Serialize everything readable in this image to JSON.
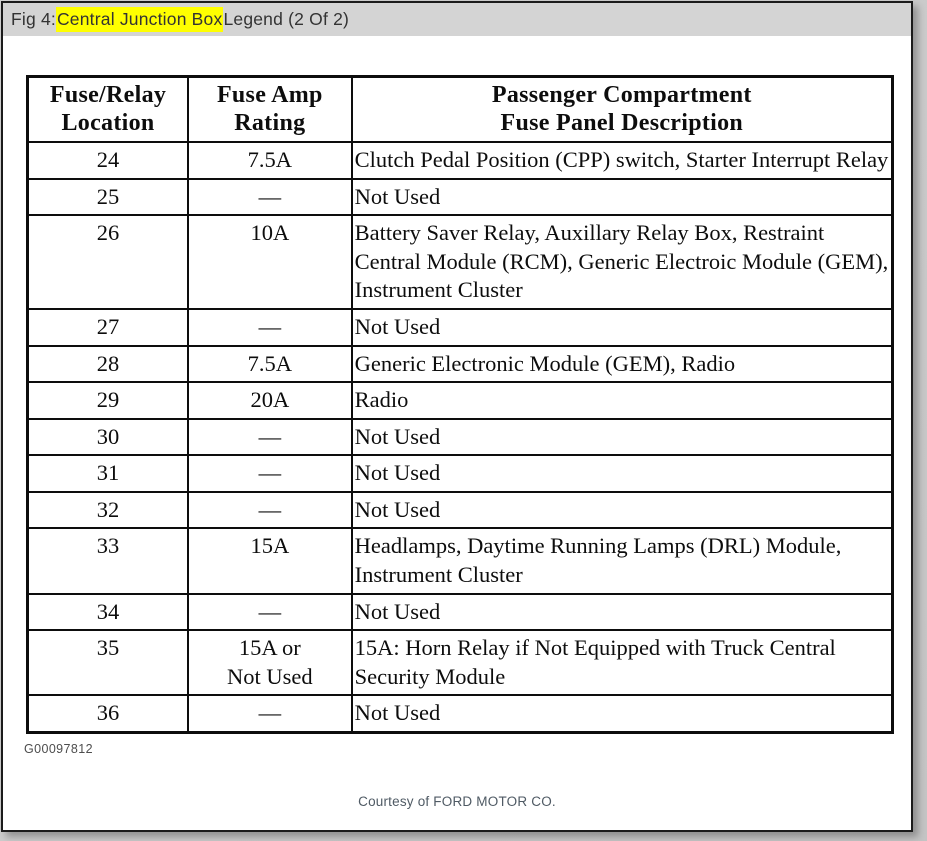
{
  "header": {
    "fig_prefix": "Fig 4: ",
    "fig_highlight": "Central Junction Box",
    "fig_suffix": " Legend (2 Of 2)",
    "highlight_color": "#ffff00",
    "bar_color": "#d4d4d4"
  },
  "table": {
    "headers": [
      {
        "line1": "Fuse/Relay",
        "line2": "Location"
      },
      {
        "line1": "Fuse Amp",
        "line2": "Rating"
      },
      {
        "line1": "Passenger Compartment",
        "line2": "Fuse Panel Description"
      }
    ],
    "rows": [
      {
        "location": "24",
        "rating": "7.5A",
        "description": "Clutch Pedal Position (CPP) switch, Starter Interrupt Relay"
      },
      {
        "location": "25",
        "rating": "—",
        "description": "Not Used"
      },
      {
        "location": "26",
        "rating": "10A",
        "description": "Battery Saver Relay, Auxillary Relay Box, Restraint Central Module (RCM), Generic Electroic Module (GEM), Instrument Cluster"
      },
      {
        "location": "27",
        "rating": "—",
        "description": "Not Used"
      },
      {
        "location": "28",
        "rating": "7.5A",
        "description": "Generic Electronic Module (GEM), Radio"
      },
      {
        "location": "29",
        "rating": "20A",
        "description": "Radio"
      },
      {
        "location": "30",
        "rating": "—",
        "description": "Not Used"
      },
      {
        "location": "31",
        "rating": "—",
        "description": "Not Used"
      },
      {
        "location": "32",
        "rating": "—",
        "description": "Not Used"
      },
      {
        "location": "33",
        "rating": "15A",
        "description": "Headlamps, Daytime Running Lamps (DRL) Module, Instrument Cluster"
      },
      {
        "location": "34",
        "rating": "—",
        "description": "Not Used"
      },
      {
        "location": "35",
        "rating": "15A or\nNot Used",
        "description": "15A: Horn Relay if Not Equipped with Truck Central Security Module"
      },
      {
        "location": "36",
        "rating": "—",
        "description": "Not Used"
      }
    ]
  },
  "footer": {
    "doc_id": "G00097812",
    "courtesy": "Courtesy of FORD MOTOR CO."
  }
}
